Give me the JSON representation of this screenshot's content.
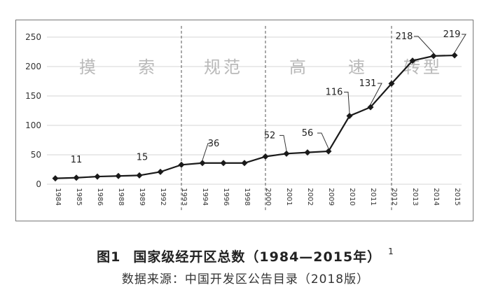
{
  "chart_data": {
    "type": "line",
    "categories": [
      "1984",
      "1985",
      "1986",
      "1988",
      "1989",
      "1992",
      "1993",
      "1994",
      "1996",
      "1998",
      "2000",
      "2001",
      "2002",
      "2009",
      "2010",
      "2011",
      "2012",
      "2013",
      "2014",
      "2015"
    ],
    "values": [
      10,
      11,
      13,
      14,
      15,
      21,
      33,
      36,
      36,
      36,
      47,
      52,
      54,
      56,
      116,
      131,
      171,
      210,
      218,
      219
    ],
    "data_labels": [
      {
        "category": "1985",
        "text": "11"
      },
      {
        "category": "1989",
        "text": "15"
      },
      {
        "category": "1994",
        "text": "36"
      },
      {
        "category": "2001",
        "text": "52"
      },
      {
        "category": "2009",
        "text": "56"
      },
      {
        "category": "2010",
        "text": "116"
      },
      {
        "category": "2011",
        "text": "131"
      },
      {
        "category": "2014",
        "text": "218"
      },
      {
        "category": "2015",
        "text": "219"
      }
    ],
    "yticks": [
      0,
      50,
      100,
      150,
      200,
      250
    ],
    "ylim": [
      0,
      250
    ],
    "grid": true,
    "phase_dividers": [
      "1993",
      "2000",
      "2012"
    ],
    "phases": [
      {
        "label": "摸　　索",
        "start": "1984",
        "end": "1993"
      },
      {
        "label": "规范",
        "start": "1993",
        "end": "2000"
      },
      {
        "label": "高　　速",
        "start": "2000",
        "end": "2012"
      },
      {
        "label": "转型",
        "start": "2012",
        "end": "2015"
      }
    ],
    "title": "",
    "xlabel": "",
    "ylabel": ""
  },
  "caption": {
    "figure_number": "图1",
    "title": "国家级经开区总数（1984—2015年）",
    "footnote_mark": "1",
    "source": "数据来源：中国开发区公告目录（2018版）"
  },
  "colors": {
    "line": "#1a1a1a",
    "grid": "#d6d6d6",
    "divider": "#555555",
    "phase_text": "#b9b9b9"
  }
}
